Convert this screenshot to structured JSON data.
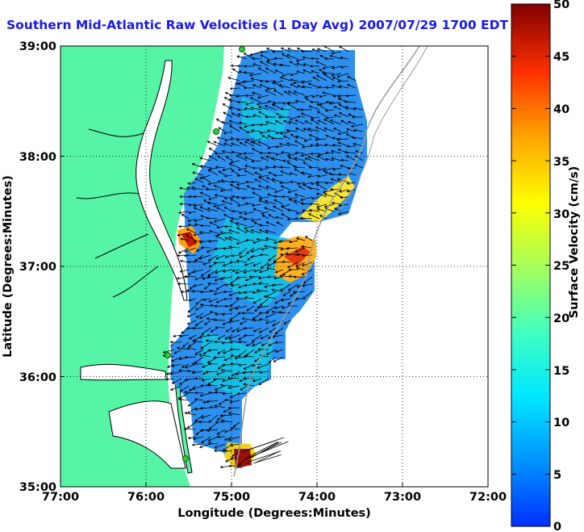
{
  "title": "Southern Mid-Atlantic Raw Velocities (1 Day Avg) 2007/07/29 1700 EDT",
  "title_color": "#1a1ae6",
  "axes": {
    "xlabel": "Longitude (Degrees:Minutes)",
    "ylabel": "Latitude (Degrees:Minutes)",
    "xticks": [
      "77:00",
      "76:00",
      "75:00",
      "74:00",
      "73:00",
      "72:00"
    ],
    "yticks": [
      "39:00",
      "38:00",
      "37:00",
      "36:00",
      "35:00"
    ],
    "xlim": [
      -77,
      -72
    ],
    "ylim": [
      35,
      39
    ],
    "grid": true
  },
  "colorbar": {
    "label": "Surface Velocity (cm/s)",
    "ticks": [
      "0",
      "5",
      "10",
      "15",
      "20",
      "25",
      "30",
      "35",
      "40",
      "45",
      "50"
    ],
    "range": [
      0,
      50
    ],
    "colormap": "jet"
  },
  "colors": {
    "land": "#55f5a5",
    "coast": "#000000",
    "shelf_contour": "#9a9a9a",
    "station": "#2ecc40",
    "vector": "#000000"
  }
}
